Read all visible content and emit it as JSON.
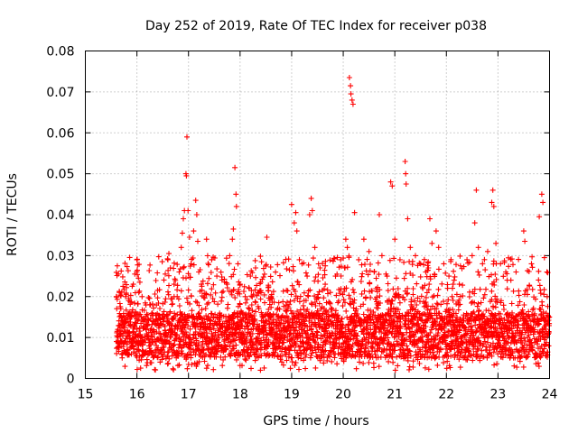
{
  "chart_data": {
    "type": "scatter",
    "title": "Day 252 of 2019, Rate Of TEC Index for receiver p038",
    "xlabel": "GPS time / hours",
    "ylabel": "ROTI / TECUs",
    "xlim": [
      15,
      24
    ],
    "ylim": [
      0,
      0.08
    ],
    "xticks": [
      15,
      16,
      17,
      18,
      19,
      20,
      21,
      22,
      23,
      24
    ],
    "xtick_labels": [
      "15",
      "16",
      "17",
      "18",
      "19",
      "20",
      "21",
      "22",
      "23",
      "24"
    ],
    "yticks": [
      0,
      0.01,
      0.02,
      0.03,
      0.04,
      0.05,
      0.06,
      0.07,
      0.08
    ],
    "ytick_labels": [
      "0",
      "0.01",
      "0.02",
      "0.03",
      "0.04",
      "0.05",
      "0.06",
      "0.07",
      "0.08"
    ],
    "grid": true,
    "marker": "+",
    "color": "#ff0000",
    "series": [
      {
        "name": "ROTI",
        "points": [
          [
            15.62,
            0.0275
          ],
          [
            15.64,
            0.0255
          ],
          [
            15.66,
            0.021
          ],
          [
            15.68,
            0.0175
          ],
          [
            15.7,
            0.015
          ],
          [
            15.73,
            0.0225
          ],
          [
            15.78,
            0.02
          ],
          [
            15.84,
            0.019
          ],
          [
            15.93,
            0.023
          ],
          [
            15.96,
            0.0255
          ],
          [
            16.0,
            0.029
          ],
          [
            16.03,
            0.0245
          ],
          [
            16.1,
            0.02
          ],
          [
            16.25,
            0.018
          ],
          [
            16.4,
            0.0215
          ],
          [
            16.55,
            0.0255
          ],
          [
            16.6,
            0.029
          ],
          [
            16.62,
            0.0305
          ],
          [
            16.65,
            0.027
          ],
          [
            16.72,
            0.023
          ],
          [
            16.78,
            0.02
          ],
          [
            16.82,
            0.026
          ],
          [
            16.86,
            0.032
          ],
          [
            16.88,
            0.0355
          ],
          [
            16.9,
            0.039
          ],
          [
            16.92,
            0.041
          ],
          [
            16.95,
            0.05
          ],
          [
            16.96,
            0.0495
          ],
          [
            16.97,
            0.059
          ],
          [
            16.99,
            0.041
          ],
          [
            17.02,
            0.0345
          ],
          [
            17.05,
            0.028
          ],
          [
            17.1,
            0.036
          ],
          [
            17.14,
            0.0435
          ],
          [
            17.16,
            0.04
          ],
          [
            17.18,
            0.0335
          ],
          [
            17.2,
            0.026
          ],
          [
            17.25,
            0.023
          ],
          [
            17.35,
            0.034
          ],
          [
            17.45,
            0.029
          ],
          [
            17.55,
            0.025
          ],
          [
            17.65,
            0.021
          ],
          [
            17.8,
            0.03
          ],
          [
            17.85,
            0.034
          ],
          [
            17.87,
            0.0365
          ],
          [
            17.9,
            0.0515
          ],
          [
            17.92,
            0.045
          ],
          [
            17.93,
            0.042
          ],
          [
            17.96,
            0.028
          ],
          [
            18.0,
            0.023
          ],
          [
            18.1,
            0.02
          ],
          [
            18.2,
            0.025
          ],
          [
            18.3,
            0.027
          ],
          [
            18.4,
            0.0235
          ],
          [
            18.52,
            0.0345
          ],
          [
            18.6,
            0.02
          ],
          [
            18.75,
            0.0185
          ],
          [
            18.9,
            0.0215
          ],
          [
            19.0,
            0.0425
          ],
          [
            19.05,
            0.038
          ],
          [
            19.08,
            0.0405
          ],
          [
            19.1,
            0.036
          ],
          [
            19.15,
            0.029
          ],
          [
            19.2,
            0.028
          ],
          [
            19.3,
            0.025
          ],
          [
            19.35,
            0.04
          ],
          [
            19.38,
            0.044
          ],
          [
            19.4,
            0.041
          ],
          [
            19.45,
            0.032
          ],
          [
            19.55,
            0.027
          ],
          [
            19.65,
            0.023
          ],
          [
            19.75,
            0.021
          ],
          [
            19.85,
            0.025
          ],
          [
            19.95,
            0.029
          ],
          [
            20.05,
            0.034
          ],
          [
            20.08,
            0.032
          ],
          [
            20.12,
            0.0735
          ],
          [
            20.14,
            0.0715
          ],
          [
            20.15,
            0.0695
          ],
          [
            20.17,
            0.068
          ],
          [
            20.19,
            0.067
          ],
          [
            20.22,
            0.0405
          ],
          [
            20.3,
            0.029
          ],
          [
            20.4,
            0.034
          ],
          [
            20.5,
            0.031
          ],
          [
            20.6,
            0.026
          ],
          [
            20.7,
            0.04
          ],
          [
            20.75,
            0.03
          ],
          [
            20.85,
            0.025
          ],
          [
            20.92,
            0.048
          ],
          [
            20.95,
            0.047
          ],
          [
            21.0,
            0.034
          ],
          [
            21.1,
            0.029
          ],
          [
            21.2,
            0.053
          ],
          [
            21.21,
            0.05
          ],
          [
            21.22,
            0.0475
          ],
          [
            21.25,
            0.039
          ],
          [
            21.3,
            0.032
          ],
          [
            21.4,
            0.03
          ],
          [
            21.5,
            0.028
          ],
          [
            21.6,
            0.026
          ],
          [
            21.68,
            0.039
          ],
          [
            21.72,
            0.033
          ],
          [
            21.8,
            0.036
          ],
          [
            21.85,
            0.032
          ],
          [
            21.95,
            0.028
          ],
          [
            22.05,
            0.025
          ],
          [
            22.15,
            0.024
          ],
          [
            22.25,
            0.023
          ],
          [
            22.4,
            0.029
          ],
          [
            22.5,
            0.03
          ],
          [
            22.55,
            0.038
          ],
          [
            22.58,
            0.046
          ],
          [
            22.62,
            0.032
          ],
          [
            22.7,
            0.028
          ],
          [
            22.8,
            0.031
          ],
          [
            22.88,
            0.043
          ],
          [
            22.9,
            0.046
          ],
          [
            22.92,
            0.042
          ],
          [
            22.96,
            0.033
          ],
          [
            23.05,
            0.028
          ],
          [
            23.15,
            0.026
          ],
          [
            23.25,
            0.024
          ],
          [
            23.35,
            0.026
          ],
          [
            23.5,
            0.036
          ],
          [
            23.52,
            0.0335
          ],
          [
            23.65,
            0.028
          ],
          [
            23.8,
            0.0395
          ],
          [
            23.85,
            0.045
          ],
          [
            23.87,
            0.043
          ],
          [
            23.9,
            0.0295
          ],
          [
            23.95,
            0.026
          ]
        ],
        "dense_band": {
          "x_range": [
            15.6,
            24.0
          ],
          "y_range": [
            0.002,
            0.024
          ],
          "description": "dense cluster of points between about 0.004 and 0.02 across the full time span"
        }
      }
    ]
  }
}
